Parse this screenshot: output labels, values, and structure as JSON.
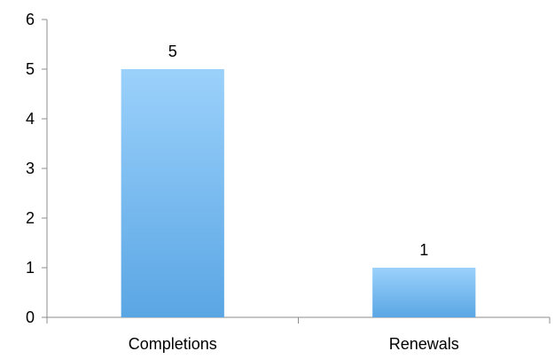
{
  "chart_data": {
    "type": "bar",
    "categories": [
      "Completions",
      "Renewals"
    ],
    "values": [
      5,
      1
    ],
    "data_labels": [
      "5",
      "1"
    ],
    "y_ticks": [
      "0",
      "1",
      "2",
      "3",
      "4",
      "5",
      "6"
    ],
    "ylim": [
      0,
      6
    ],
    "title": "",
    "xlabel": "",
    "ylabel": "",
    "grid": false,
    "legend": false,
    "colors": {
      "bar_top": "#9bd1fb",
      "bar_bottom": "#5aa6e4",
      "axis": "#8c8c8c"
    }
  }
}
